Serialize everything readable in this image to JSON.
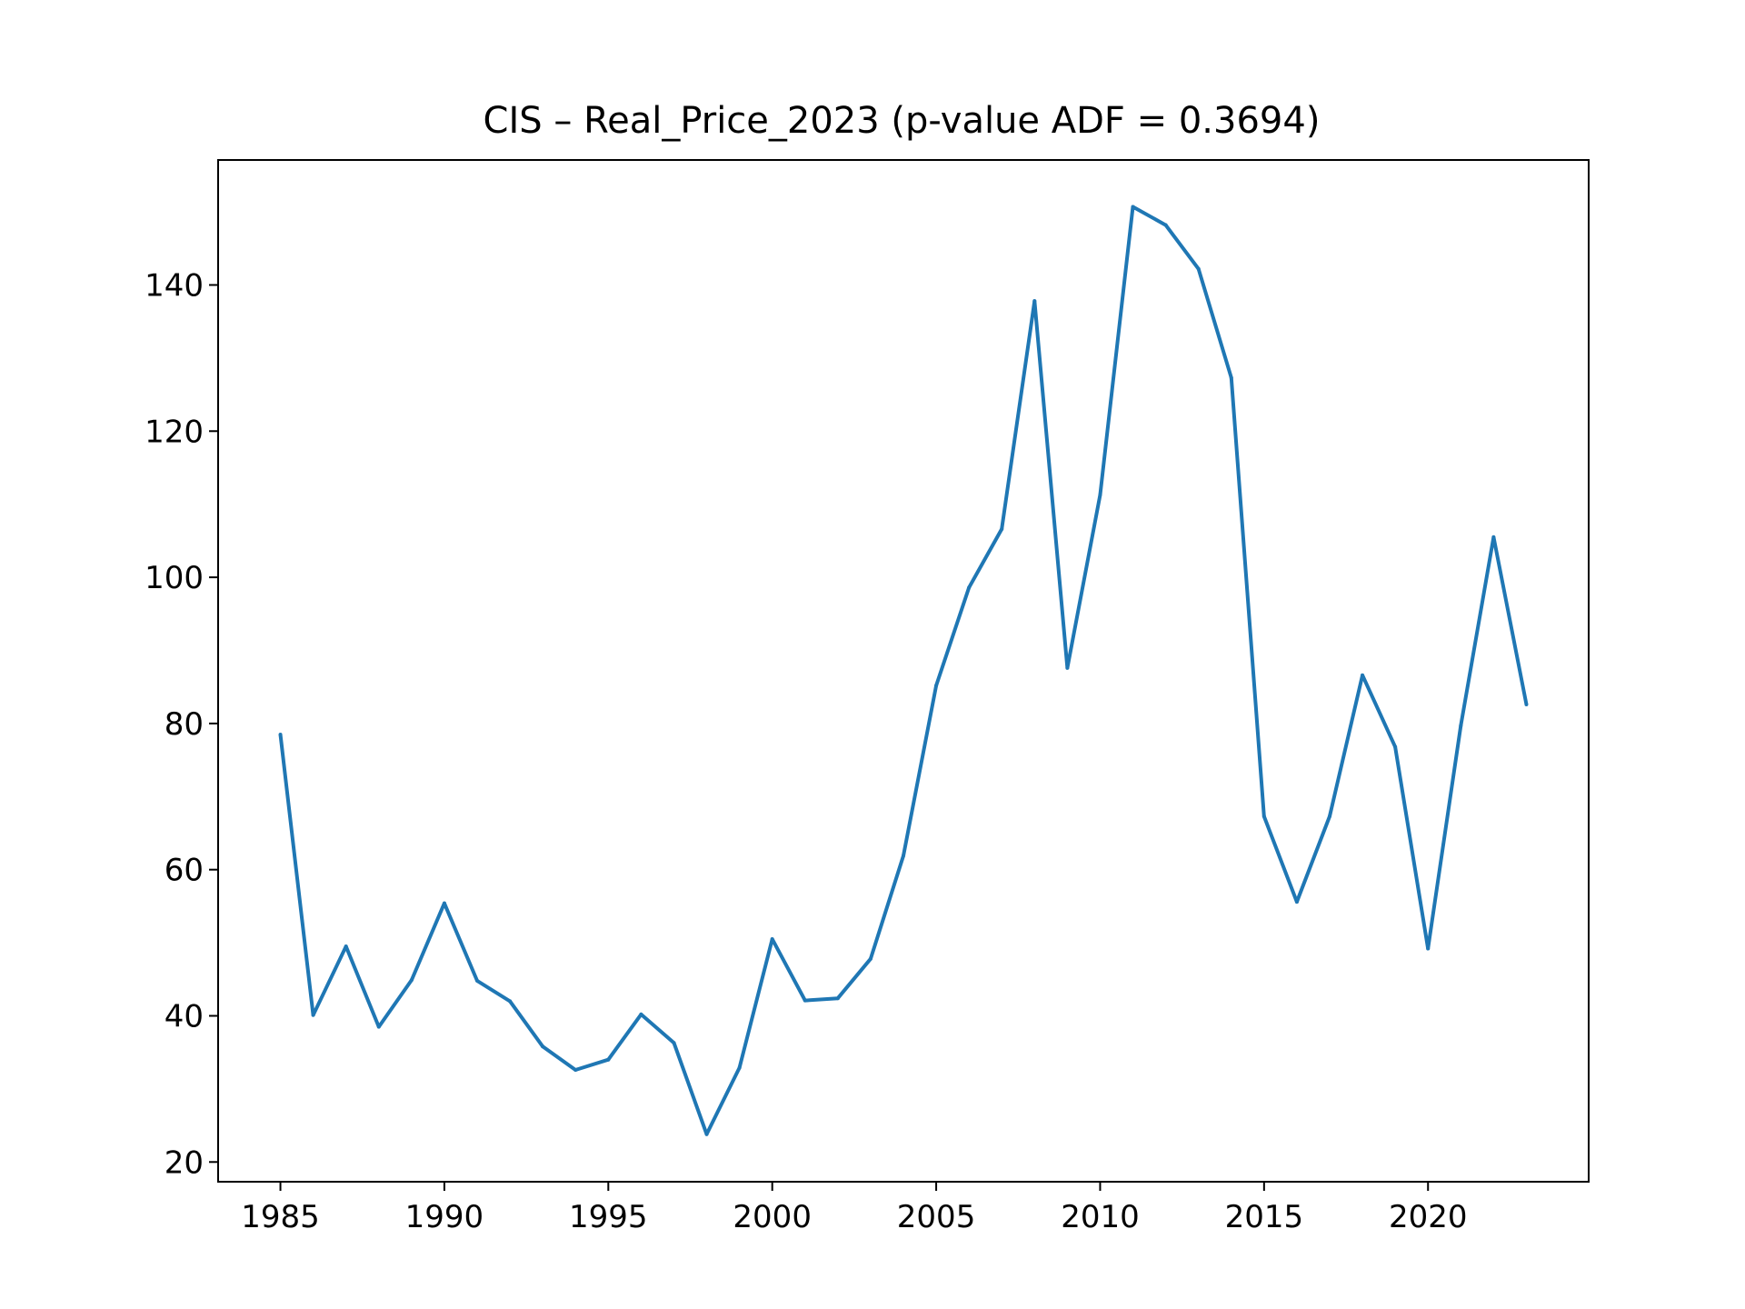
{
  "chart_data": {
    "type": "line",
    "title": "CIS – Real_Price_2023 (p-value ADF = 0.3694)",
    "xlabel": "",
    "ylabel": "",
    "xlim": [
      1983.1,
      2024.9
    ],
    "ylim": [
      17.3,
      157.1
    ],
    "xticks": [
      1985,
      1990,
      1995,
      2000,
      2005,
      2010,
      2015,
      2020
    ],
    "yticks": [
      20,
      40,
      60,
      80,
      100,
      120,
      140
    ],
    "grid": false,
    "line_color": "#1f77b4",
    "series": [
      {
        "x": [
          1985,
          1986,
          1987,
          1988,
          1989,
          1990,
          1991,
          1992,
          1993,
          1994,
          1995,
          1996,
          1997,
          1998,
          1999,
          2000,
          2001,
          2002,
          2003,
          2004,
          2005,
          2006,
          2007,
          2008,
          2009,
          2010,
          2011,
          2012,
          2013,
          2014,
          2015,
          2016,
          2017,
          2018,
          2019,
          2020,
          2021,
          2022,
          2023
        ],
        "values": [
          78.5,
          40.1,
          49.5,
          38.5,
          44.9,
          55.4,
          44.8,
          42.0,
          35.8,
          32.6,
          34.0,
          40.2,
          36.3,
          23.8,
          32.9,
          50.5,
          42.1,
          42.4,
          47.8,
          61.9,
          85.2,
          98.6,
          106.6,
          137.8,
          87.6,
          111.3,
          150.7,
          148.2,
          142.2,
          127.3,
          67.3,
          55.6,
          67.3,
          86.6,
          76.8,
          49.2,
          79.7,
          105.5,
          82.6
        ]
      }
    ]
  }
}
